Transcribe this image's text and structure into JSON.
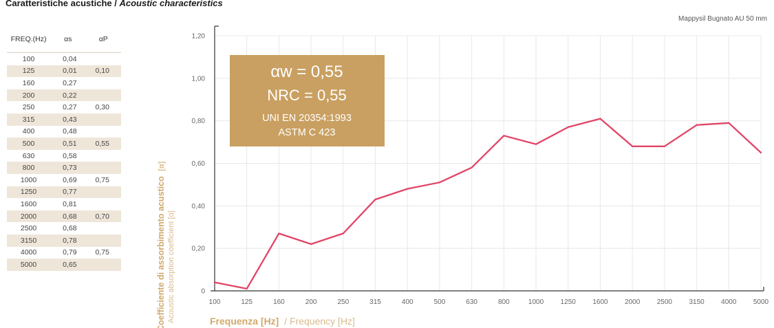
{
  "header": {
    "title_it": "Caratteristiche acustiche / ",
    "title_en": "Acoustic characteristics",
    "product": "Mappysil Bugnato AU 50 mm"
  },
  "table": {
    "headers": [
      "FREQ.(Hz)",
      "αs",
      "αP"
    ],
    "rows": [
      [
        "100",
        "0,04",
        ""
      ],
      [
        "125",
        "0,01",
        "0,10"
      ],
      [
        "160",
        "0,27",
        ""
      ],
      [
        "200",
        "0,22",
        ""
      ],
      [
        "250",
        "0,27",
        "0,30"
      ],
      [
        "315",
        "0,43",
        ""
      ],
      [
        "400",
        "0,48",
        ""
      ],
      [
        "500",
        "0,51",
        "0,55"
      ],
      [
        "630",
        "0,58",
        ""
      ],
      [
        "800",
        "0,73",
        ""
      ],
      [
        "1000",
        "0,69",
        "0,75"
      ],
      [
        "1250",
        "0,77",
        ""
      ],
      [
        "1600",
        "0,81",
        ""
      ],
      [
        "2000",
        "0,68",
        "0,70"
      ],
      [
        "2500",
        "0,68",
        ""
      ],
      [
        "3150",
        "0,78",
        ""
      ],
      [
        "4000",
        "0,79",
        "0,75"
      ],
      [
        "5000",
        "0,65",
        ""
      ]
    ]
  },
  "infobox": {
    "line1": "αw = 0,55",
    "line2": "NRC = 0,55",
    "line3": "UNI EN 20354:1993",
    "line4": "ASTM C 423"
  },
  "colors": {
    "line": "#e24466",
    "accent": "#c9a061",
    "box": "#c9a061",
    "table_alt_row": "#efe6da",
    "grid": "#e8e8e8"
  },
  "chart_data": {
    "type": "line",
    "categories": [
      "100",
      "125",
      "160",
      "200",
      "250",
      "315",
      "400",
      "500",
      "630",
      "800",
      "1000",
      "1250",
      "1600",
      "2000",
      "2500",
      "3150",
      "4000",
      "5000"
    ],
    "series": [
      {
        "values": [
          0.04,
          0.01,
          0.27,
          0.22,
          0.27,
          0.43,
          0.48,
          0.51,
          0.58,
          0.73,
          0.69,
          0.77,
          0.81,
          0.68,
          0.68,
          0.78,
          0.79,
          0.65
        ]
      }
    ],
    "ylim": [
      0,
      1.2
    ],
    "yticks": [
      "0",
      "0,20",
      "0,40",
      "0,60",
      "0,80",
      "1,00",
      "1,20"
    ],
    "ylabel_it": "Coefficiente di assorbimento acustico",
    "ylabel_it_unit": "[α]",
    "ylabel_en": "Acoustic absorption coefficient [α]",
    "xlabel_it": "Frequenza [Hz]",
    "xlabel_en": "/ Frequency [Hz]",
    "grid": true
  }
}
